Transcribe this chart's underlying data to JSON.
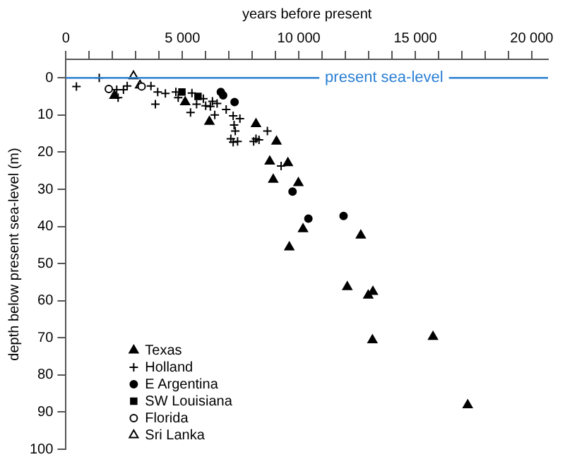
{
  "chart_data": {
    "type": "scatter",
    "xlabel": "years before present",
    "ylabel": "depth below present sea-level (m)",
    "xlim": [
      0,
      20700
    ],
    "ylim": [
      100,
      -5
    ],
    "xticks": [
      0,
      {
        "value": 1000,
        "label": null
      },
      {
        "value": 2000,
        "label": null
      },
      {
        "value": 3000,
        "label": null
      },
      {
        "value": 4000,
        "label": null
      },
      {
        "value": 5000,
        "label": "5 000"
      },
      {
        "value": 6000,
        "label": null
      },
      {
        "value": 7000,
        "label": null
      },
      {
        "value": 8000,
        "label": null
      },
      {
        "value": 9000,
        "label": null
      },
      {
        "value": 10000,
        "label": "10 000"
      },
      {
        "value": 11000,
        "label": null
      },
      {
        "value": 12000,
        "label": null
      },
      {
        "value": 13000,
        "label": null
      },
      {
        "value": 14000,
        "label": null
      },
      {
        "value": 15000,
        "label": "15 000"
      },
      {
        "value": 16000,
        "label": null
      },
      {
        "value": 17000,
        "label": null
      },
      {
        "value": 18000,
        "label": null
      },
      {
        "value": 19000,
        "label": null
      },
      {
        "value": 20000,
        "label": "20 000"
      }
    ],
    "yticks": [
      0,
      10,
      20,
      30,
      40,
      50,
      60,
      70,
      80,
      90,
      100
    ],
    "grid": false,
    "legend": "bottom left",
    "ref_lines": [
      {
        "axis": "y",
        "value": 0,
        "label": "present sea-level",
        "color": "#2a7fd4"
      }
    ],
    "series": [
      {
        "name": "Texas",
        "color": "#000000",
        "marker": "triangle",
        "x": [
          2080,
          5120,
          6160,
          8160,
          9040,
          8750,
          9530,
          8900,
          9980,
          10180,
          9590,
          12660,
          12080,
          13180,
          12980,
          13160,
          15760,
          17250
        ],
        "values": [
          4.8,
          6.5,
          11.8,
          12.4,
          17.1,
          22.5,
          22.9,
          27.4,
          28.3,
          40.7,
          45.6,
          42.4,
          56.3,
          57.6,
          58.6,
          70.6,
          69.7,
          88.1
        ]
      },
      {
        "name": "Holland",
        "color": "#000000",
        "marker": "cross",
        "x": [
          450,
          1430,
          2180,
          2240,
          2470,
          2630,
          3650,
          3840,
          3940,
          4270,
          4720,
          4820,
          5350,
          5410,
          5610,
          5900,
          6000,
          6200,
          6290,
          6390,
          6490,
          6880,
          7180,
          7220,
          7270,
          7080,
          7180,
          7370,
          7470,
          8060,
          8160,
          8290,
          8650,
          9240
        ],
        "values": [
          2.3,
          0,
          3.2,
          5.3,
          3.2,
          2.2,
          2.2,
          7.1,
          3.8,
          4.2,
          3.8,
          5.3,
          9.3,
          4.1,
          7.1,
          5.6,
          7.5,
          7.7,
          6.3,
          10,
          6.9,
          8.5,
          10.2,
          12.7,
          14.3,
          16.4,
          17.3,
          17.1,
          11,
          17.1,
          16.4,
          16.7,
          14.3,
          23.7
        ]
      },
      {
        "name": "E Argentina",
        "color": "#000000",
        "marker": "circle",
        "x": [
          6650,
          6750,
          7240,
          9730,
          10410,
          11920
        ],
        "values": [
          3.8,
          4.7,
          6.5,
          30.6,
          37.9,
          37.2
        ]
      },
      {
        "name": "SW Louisiana",
        "color": "#000000",
        "marker": "square",
        "x": [
          4980,
          5670
        ],
        "values": [
          3.8,
          5.0
        ]
      },
      {
        "name": "Florida",
        "color": "#ffffff",
        "marker": "circle",
        "x": [
          1840,
          3250
        ],
        "values": [
          3.0,
          2.3
        ]
      },
      {
        "name": "Sri Lanka",
        "color": "#ffffff",
        "marker": "triangle",
        "x": [
          2900,
          3180
        ],
        "values": [
          -0.5,
          2.0
        ]
      }
    ]
  }
}
